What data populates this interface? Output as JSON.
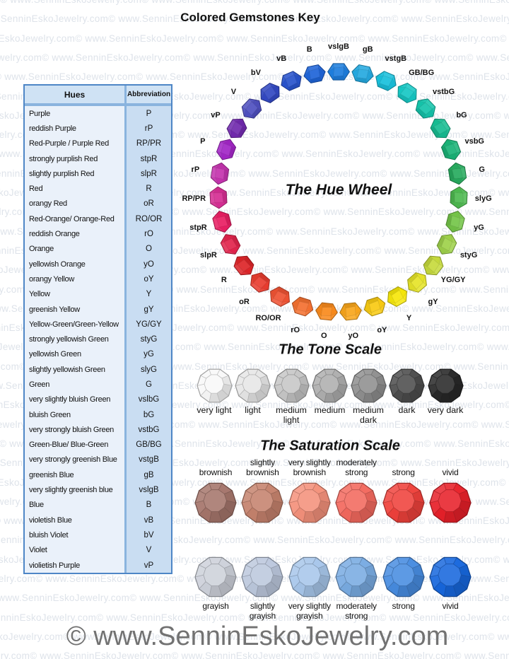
{
  "title": "Colored Gemstones Key",
  "watermark": "© www.SenninEskoJewelry.com",
  "table": {
    "headers": [
      "Hues",
      "Abbreviation"
    ],
    "rows": [
      [
        "Purple",
        "P"
      ],
      [
        "reddish Purple",
        "rP"
      ],
      [
        "Red-Purple / Purple Red",
        "RP/PR"
      ],
      [
        "strongly purplish Red",
        "stpR"
      ],
      [
        "slightly purplish Red",
        "slpR"
      ],
      [
        "Red",
        "R"
      ],
      [
        "orangy Red",
        "oR"
      ],
      [
        "Red-Orange/ Orange-Red",
        "RO/OR"
      ],
      [
        "reddish Orange",
        "rO"
      ],
      [
        "Orange",
        "O"
      ],
      [
        "yellowish Orange",
        "yO"
      ],
      [
        "orangy Yellow",
        "oY"
      ],
      [
        "Yellow",
        "Y"
      ],
      [
        "greenish Yellow",
        "gY"
      ],
      [
        "Yellow-Green/Green-Yellow",
        "YG/GY"
      ],
      [
        "strongly yellowish Green",
        "styG"
      ],
      [
        "yellowish Green",
        "yG"
      ],
      [
        "slightly yellowish Green",
        "slyG"
      ],
      [
        "Green",
        "G"
      ],
      [
        "very slightly bluish Green",
        "vslbG"
      ],
      [
        "bluish Green",
        "bG"
      ],
      [
        "very strongly bluish Green",
        "vstbG"
      ],
      [
        "Green-Blue/ Blue-Green",
        "GB/BG"
      ],
      [
        "very strongly greenish Blue",
        "vstgB"
      ],
      [
        "greenish Blue",
        "gB"
      ],
      [
        "very slightly greenish blue",
        "vslgB"
      ],
      [
        "Blue",
        "B"
      ],
      [
        "violetish Blue",
        "vB"
      ],
      [
        "bluish Violet",
        "bV"
      ],
      [
        "Violet",
        "V"
      ],
      [
        "violietish Purple",
        "vP"
      ]
    ]
  },
  "hue_wheel": {
    "title": "The Hue Wheel",
    "gems": [
      {
        "label": "vslgB",
        "color": "#1e7ede"
      },
      {
        "label": "gB",
        "color": "#24a9e0"
      },
      {
        "label": "vstgB",
        "color": "#18c0dc"
      },
      {
        "label": "GB/BG",
        "color": "#16c8c4"
      },
      {
        "label": "vstbG",
        "color": "#14c4ab"
      },
      {
        "label": "bG",
        "color": "#16bd92"
      },
      {
        "label": "vsbG",
        "color": "#1ab377"
      },
      {
        "label": "G",
        "color": "#27ab5e"
      },
      {
        "label": "slyG",
        "color": "#4eba50"
      },
      {
        "label": "yG",
        "color": "#74c548"
      },
      {
        "label": "styG",
        "color": "#9ed14a"
      },
      {
        "label": "YG/GY",
        "color": "#c6da3c"
      },
      {
        "label": "gY",
        "color": "#e6e428"
      },
      {
        "label": "Y",
        "color": "#f6e70a"
      },
      {
        "label": "oY",
        "color": "#f8ca12"
      },
      {
        "label": "yO",
        "color": "#f9a61b"
      },
      {
        "label": "O",
        "color": "#f98a1c"
      },
      {
        "label": "rO",
        "color": "#f47030"
      },
      {
        "label": "RO/OR",
        "color": "#ef5233"
      },
      {
        "label": "oR",
        "color": "#e93c2f"
      },
      {
        "label": "R",
        "color": "#dd2428"
      },
      {
        "label": "slpR",
        "color": "#e2234c"
      },
      {
        "label": "stpR",
        "color": "#e91e63"
      },
      {
        "label": "RP/PR",
        "color": "#d62d93"
      },
      {
        "label": "rP",
        "color": "#c433ae"
      },
      {
        "label": "P",
        "color": "#a226c6"
      },
      {
        "label": "vP",
        "color": "#7129ae"
      },
      {
        "label": "V",
        "color": "#4f50c0"
      },
      {
        "label": "bV",
        "color": "#3248c2"
      },
      {
        "label": "vB",
        "color": "#2853cc"
      },
      {
        "label": "B",
        "color": "#1e64d8"
      }
    ]
  },
  "tone_scale": {
    "title": "The Tone Scale",
    "gems": [
      {
        "label": "very light",
        "color": "#f8f8f8"
      },
      {
        "label": "light",
        "color": "#e6e6e6"
      },
      {
        "label": "medium light",
        "color": "#c6c6c6"
      },
      {
        "label": "medium",
        "color": "#aeaeae"
      },
      {
        "label": "medium dark",
        "color": "#8f8f8f"
      },
      {
        "label": "dark",
        "color": "#4d4d4d"
      },
      {
        "label": "very dark",
        "color": "#282828"
      }
    ]
  },
  "saturation_scale": {
    "title": "The Saturation Scale",
    "rows": [
      {
        "labels_position": "above",
        "gems": [
          {
            "label": "brownish",
            "color": "#a5756b"
          },
          {
            "label": "slightly brownish",
            "color": "#c5826d"
          },
          {
            "label": "very slightly brownish",
            "color": "#f4917b"
          },
          {
            "label": "moderately strong",
            "color": "#f3695e"
          },
          {
            "label": "strong",
            "color": "#ef413b"
          },
          {
            "label": "vivid",
            "color": "#e72029"
          }
        ]
      },
      {
        "labels_position": "below",
        "gems": [
          {
            "label": "grayish",
            "color": "#cdd1da"
          },
          {
            "label": "slightly grayish",
            "color": "#bcc8dd"
          },
          {
            "label": "very slightly grayish",
            "color": "#a7c6ea"
          },
          {
            "label": "moderately strong",
            "color": "#79abe2"
          },
          {
            "label": "strong",
            "color": "#478ce0"
          },
          {
            "label": "vivid",
            "color": "#1767dd"
          }
        ]
      }
    ]
  },
  "footer": "© www.SenninEskoJewelry.com"
}
